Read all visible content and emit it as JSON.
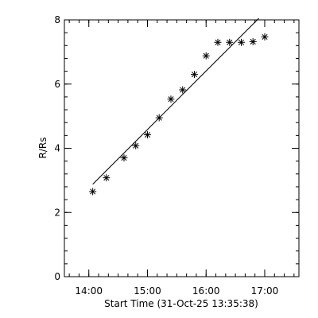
{
  "chart_data": {
    "type": "scatter",
    "xlabel": "Start Time (31-Oct-25 13:35:38)",
    "ylabel": "R/Rs",
    "xlim_minutes": [
      815,
      1055
    ],
    "ylim": [
      0,
      8
    ],
    "x_ticks": [
      {
        "label": "14:00",
        "minutes": 840
      },
      {
        "label": "15:00",
        "minutes": 900
      },
      {
        "label": "16:00",
        "minutes": 960
      },
      {
        "label": "17:00",
        "minutes": 1020
      }
    ],
    "y_ticks": [
      0,
      2,
      4,
      6,
      8
    ],
    "x_minor_step_minutes": 10,
    "y_minor_step": 0.4,
    "series": [
      {
        "marker": "asterisk",
        "points": [
          {
            "time": "14:04",
            "minutes": 844,
            "y": 2.65
          },
          {
            "time": "14:18",
            "minutes": 858,
            "y": 3.08
          },
          {
            "time": "14:36",
            "minutes": 876,
            "y": 3.7
          },
          {
            "time": "14:48",
            "minutes": 888,
            "y": 4.08
          },
          {
            "time": "15:00",
            "minutes": 900,
            "y": 4.42
          },
          {
            "time": "15:12",
            "minutes": 912,
            "y": 4.95
          },
          {
            "time": "15:24",
            "minutes": 924,
            "y": 5.53
          },
          {
            "time": "15:36",
            "minutes": 936,
            "y": 5.82
          },
          {
            "time": "15:48",
            "minutes": 948,
            "y": 6.3
          },
          {
            "time": "16:00",
            "minutes": 960,
            "y": 6.88
          },
          {
            "time": "16:12",
            "minutes": 972,
            "y": 7.3
          },
          {
            "time": "16:24",
            "minutes": 984,
            "y": 7.3
          },
          {
            "time": "16:36",
            "minutes": 996,
            "y": 7.3
          },
          {
            "time": "16:48",
            "minutes": 1008,
            "y": 7.32
          },
          {
            "time": "17:00",
            "minutes": 1020,
            "y": 7.47
          }
        ]
      }
    ],
    "fit_line": {
      "from": {
        "time": "14:04",
        "minutes": 844,
        "y": 2.88
      },
      "to": {
        "time": "16:54",
        "minutes": 1014,
        "y": 8.05
      }
    },
    "grid": false,
    "legend": "none"
  }
}
